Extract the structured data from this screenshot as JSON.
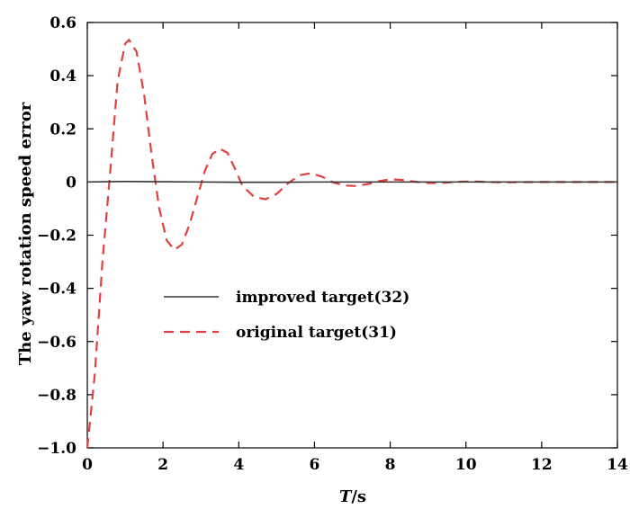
{
  "chart_data": {
    "type": "line",
    "title": "",
    "xlabel_italic": "T",
    "xlabel_suffix": "/s",
    "ylabel": "The yaw rotation speed error",
    "xlim": [
      0,
      14
    ],
    "ylim": [
      -1.0,
      0.6
    ],
    "x_ticks": [
      0,
      2,
      4,
      6,
      8,
      10,
      12,
      14
    ],
    "x_tick_labels": [
      "0",
      "2",
      "4",
      "6",
      "8",
      "10",
      "12",
      "14"
    ],
    "y_ticks": [
      -1.0,
      -0.8,
      -0.6,
      -0.4,
      -0.2,
      0,
      0.2,
      0.4,
      0.6
    ],
    "y_tick_labels": [
      "−1.0",
      "−0.8",
      "−0.6",
      "−0.4",
      "−0.2",
      "0",
      "0.2",
      "0.4",
      "0.6"
    ],
    "grid": false,
    "legend_position": "center-left",
    "series": [
      {
        "name": "improved target(32)",
        "style": "solid",
        "color": "#333333",
        "points": [
          [
            0,
            0.0
          ],
          [
            1,
            0.002
          ],
          [
            2,
            0.001
          ],
          [
            3,
            0.0
          ],
          [
            4,
            -0.001
          ],
          [
            5,
            -0.001
          ],
          [
            6,
            0.0
          ],
          [
            7,
            0.0
          ],
          [
            8,
            0.0
          ],
          [
            9,
            0.0
          ],
          [
            10,
            0.0
          ],
          [
            11,
            0.0
          ],
          [
            12,
            0.0
          ],
          [
            13,
            0.0
          ],
          [
            14,
            0.0
          ]
        ]
      },
      {
        "name": "original target(31)",
        "style": "dashed",
        "color": "#e04040",
        "points": [
          [
            0.0,
            -1.0
          ],
          [
            0.2,
            -0.72
          ],
          [
            0.4,
            -0.3
          ],
          [
            0.6,
            0.03
          ],
          [
            0.8,
            0.38
          ],
          [
            1.0,
            0.52
          ],
          [
            1.1,
            0.535
          ],
          [
            1.3,
            0.49
          ],
          [
            1.5,
            0.33
          ],
          [
            1.7,
            0.1
          ],
          [
            1.9,
            -0.1
          ],
          [
            2.1,
            -0.22
          ],
          [
            2.3,
            -0.255
          ],
          [
            2.5,
            -0.235
          ],
          [
            2.7,
            -0.16
          ],
          [
            2.9,
            -0.06
          ],
          [
            3.1,
            0.04
          ],
          [
            3.3,
            0.105
          ],
          [
            3.5,
            0.125
          ],
          [
            3.7,
            0.11
          ],
          [
            3.9,
            0.05
          ],
          [
            4.1,
            -0.015
          ],
          [
            4.4,
            -0.055
          ],
          [
            4.7,
            -0.065
          ],
          [
            5.0,
            -0.045
          ],
          [
            5.3,
            -0.005
          ],
          [
            5.6,
            0.025
          ],
          [
            5.9,
            0.033
          ],
          [
            6.2,
            0.02
          ],
          [
            6.5,
            -0.002
          ],
          [
            6.8,
            -0.013
          ],
          [
            7.1,
            -0.015
          ],
          [
            7.4,
            -0.008
          ],
          [
            7.7,
            0.003
          ],
          [
            8.0,
            0.01
          ],
          [
            8.3,
            0.008
          ],
          [
            8.6,
            0.002
          ],
          [
            9.0,
            -0.004
          ],
          [
            9.4,
            -0.003
          ],
          [
            9.8,
            0.001
          ],
          [
            10.2,
            0.002
          ],
          [
            10.6,
            0.0
          ],
          [
            11.0,
            -0.001
          ],
          [
            12.0,
            0.0
          ],
          [
            13.0,
            0.0
          ],
          [
            14.0,
            0.0
          ]
        ]
      }
    ]
  }
}
